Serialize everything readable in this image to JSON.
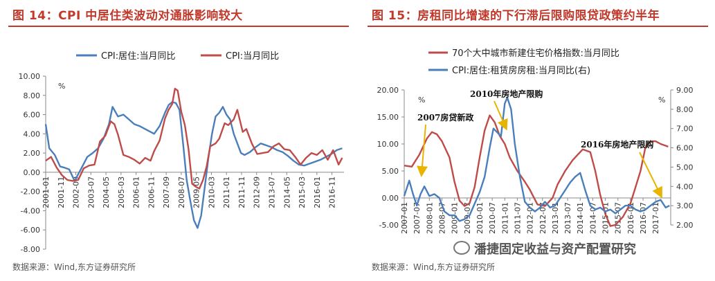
{
  "colors": {
    "title": "#c0392b",
    "blue": "#4a7ebb",
    "red": "#be4b48"
  },
  "left": {
    "title": "图 14：CPI 中居住类波动对通胀影响较大",
    "source": "数据来源：Wind,东方证券研究所"
  },
  "right": {
    "title": "图 15：房租同比增速的下行滞后限购限贷政策约半年",
    "source": "数据来源：Wind,东方证券研究所",
    "watermark": "潘捷固定收益与资产配置研究"
  },
  "chart_data": [
    {
      "type": "line",
      "unit": "%",
      "ylim": [
        -8,
        10
      ],
      "yticks": [
        "10.00",
        "8.00",
        "6.00",
        "4.00",
        "2.00",
        "0.00",
        "-2.00",
        "-4.00",
        "-6.00",
        "-8.00"
      ],
      "xlim": [
        2001.0,
        2017.5
      ],
      "xticks": [
        "2001-01",
        "2001-11",
        "2002-09",
        "2003-07",
        "2004-05",
        "2005-03",
        "2006-01",
        "2006-11",
        "2007-09",
        "2008-07",
        "2009-05",
        "2010-03",
        "2011-01",
        "2011-11",
        "2012-09",
        "2013-07",
        "2014-05",
        "2015-03",
        "2016-01",
        "2016-11"
      ],
      "legend_position": "top",
      "series": [
        {
          "name": "CPI:居住:当月同比",
          "color": "#4a7ebb",
          "x": [
            2001.0,
            2001.2,
            2001.5,
            2001.8,
            2002.0,
            2002.3,
            2002.6,
            2003.0,
            2003.3,
            2003.6,
            2003.9,
            2004.2,
            2004.5,
            2004.7,
            2005.0,
            2005.3,
            2005.6,
            2005.9,
            2006.2,
            2006.5,
            2006.8,
            2007.0,
            2007.3,
            2007.6,
            2007.8,
            2008.0,
            2008.2,
            2008.4,
            2008.6,
            2008.8,
            2009.0,
            2009.2,
            2009.4,
            2009.6,
            2009.8,
            2010.0,
            2010.2,
            2010.4,
            2010.6,
            2010.8,
            2011.0,
            2011.2,
            2011.4,
            2011.6,
            2011.8,
            2012.0,
            2012.3,
            2012.6,
            2012.9,
            2013.2,
            2013.5,
            2013.8,
            2014.1,
            2014.4,
            2014.7,
            2015.0,
            2015.3,
            2015.6,
            2015.9,
            2016.2,
            2016.5,
            2016.8,
            2017.1,
            2017.4
          ],
          "y": [
            5.0,
            2.5,
            1.8,
            0.6,
            0.5,
            0.3,
            -0.9,
            0.5,
            1.6,
            2.0,
            2.5,
            3.5,
            5.0,
            6.8,
            5.8,
            6.0,
            5.5,
            5.0,
            4.8,
            4.5,
            4.2,
            4.0,
            4.8,
            6.2,
            7.0,
            7.3,
            7.2,
            6.5,
            3.0,
            -0.8,
            -3.0,
            -5.0,
            -5.8,
            -4.5,
            -1.5,
            1.5,
            4.0,
            5.8,
            6.2,
            6.8,
            6.0,
            5.5,
            4.0,
            3.0,
            2.0,
            1.8,
            2.1,
            2.6,
            3.0,
            2.8,
            2.6,
            2.3,
            2.1,
            1.7,
            1.2,
            0.8,
            0.7,
            0.9,
            1.1,
            1.3,
            1.6,
            1.9,
            2.3,
            2.5
          ]
        },
        {
          "name": "CPI:当月同比",
          "color": "#be4b48",
          "x": [
            2001.0,
            2001.3,
            2001.6,
            2001.9,
            2002.2,
            2002.5,
            2002.8,
            2003.1,
            2003.4,
            2003.7,
            2004.0,
            2004.3,
            2004.6,
            2004.8,
            2005.0,
            2005.3,
            2005.6,
            2005.9,
            2006.2,
            2006.5,
            2006.8,
            2007.0,
            2007.3,
            2007.6,
            2007.8,
            2008.0,
            2008.15,
            2008.3,
            2008.5,
            2008.7,
            2008.9,
            2009.1,
            2009.3,
            2009.5,
            2009.7,
            2009.9,
            2010.1,
            2010.4,
            2010.6,
            2010.9,
            2011.1,
            2011.4,
            2011.6,
            2011.9,
            2012.1,
            2012.4,
            2012.7,
            2013.0,
            2013.3,
            2013.6,
            2013.9,
            2014.2,
            2014.5,
            2014.8,
            2015.1,
            2015.4,
            2015.7,
            2016.0,
            2016.3,
            2016.6,
            2016.9,
            2017.2,
            2017.4
          ],
          "y": [
            1.2,
            1.6,
            0.5,
            -0.3,
            -0.8,
            -0.9,
            -0.8,
            0.4,
            0.7,
            0.8,
            3.2,
            3.8,
            5.3,
            5.0,
            3.9,
            1.8,
            1.6,
            1.3,
            0.9,
            1.5,
            1.2,
            2.2,
            3.3,
            5.6,
            6.5,
            7.1,
            8.7,
            8.5,
            6.3,
            4.9,
            2.4,
            -1.2,
            -1.5,
            -1.7,
            -0.8,
            0.6,
            2.7,
            3.0,
            3.5,
            5.1,
            4.9,
            5.5,
            6.5,
            4.2,
            4.5,
            3.0,
            1.9,
            2.0,
            2.1,
            2.7,
            3.0,
            2.4,
            2.3,
            1.6,
            0.8,
            1.5,
            2.0,
            1.8,
            2.3,
            1.3,
            2.3,
            0.8,
            1.5
          ]
        }
      ]
    },
    {
      "type": "line",
      "unit_left": "%",
      "unit_right": "%",
      "ylim": [
        -5,
        20
      ],
      "ylim_right": [
        2,
        9
      ],
      "yticks": [
        "20.00",
        "15.00",
        "10.00",
        "5.00",
        "0.00",
        "-5.00"
      ],
      "yticks_right": [
        "9.00",
        "8.00",
        "7.00",
        "6.00",
        "5.00",
        "4.00",
        "3.00",
        "2.00"
      ],
      "xlim": [
        2007.0,
        2017.6
      ],
      "xticks": [
        "2007-01",
        "2007-07",
        "2008-01",
        "2008-07",
        "2009-01",
        "2009-07",
        "2010-01",
        "2010-07",
        "2011-01",
        "2011-07",
        "2012-01",
        "2012-07",
        "2013-01",
        "2013-07",
        "2014-01",
        "2014-07",
        "2015-01",
        "2015-07",
        "2016-01",
        "2016-07",
        "2017-01"
      ],
      "legend_position": "top",
      "annotations": [
        "2007房贷新政",
        "2010年房地产限购",
        "2016年房地产限购"
      ],
      "series": [
        {
          "name": "70个大中城市新建住宅价格指数:当月同比",
          "color": "#be4b48",
          "axis": "left",
          "x": [
            2007.0,
            2007.3,
            2007.6,
            2007.9,
            2008.1,
            2008.3,
            2008.5,
            2008.8,
            2009.0,
            2009.2,
            2009.4,
            2009.6,
            2009.8,
            2010.0,
            2010.2,
            2010.4,
            2010.6,
            2010.8,
            2011.0,
            2011.2,
            2011.5,
            2011.8,
            2012.0,
            2012.3,
            2012.6,
            2012.9,
            2013.1,
            2013.4,
            2013.7,
            2013.9,
            2014.1,
            2014.4,
            2014.6,
            2014.8,
            2015.0,
            2015.2,
            2015.4,
            2015.7,
            2016.0,
            2016.2,
            2016.4,
            2016.6,
            2016.8,
            2017.0,
            2017.2,
            2017.5
          ],
          "y": [
            6.0,
            5.8,
            8.0,
            11.0,
            12.2,
            11.8,
            10.5,
            7.5,
            3.0,
            -0.5,
            -1.5,
            -1.0,
            2.0,
            7.5,
            12.5,
            15.3,
            14.0,
            11.5,
            10.0,
            7.5,
            5.0,
            3.0,
            1.5,
            -1.2,
            -1.5,
            0.0,
            2.5,
            5.0,
            7.0,
            8.0,
            9.0,
            8.5,
            5.0,
            0.5,
            -3.0,
            -5.2,
            -5.0,
            -3.5,
            -1.0,
            2.0,
            5.0,
            9.5,
            10.5,
            10.5,
            10.0,
            9.5
          ]
        },
        {
          "name": "CPI:居住:租赁房房租:当月同比(右)",
          "color": "#4a7ebb",
          "axis": "right",
          "x": [
            2007.0,
            2007.2,
            2007.35,
            2007.5,
            2007.65,
            2007.8,
            2008.0,
            2008.2,
            2008.4,
            2008.6,
            2008.8,
            2009.0,
            2009.2,
            2009.4,
            2009.6,
            2009.8,
            2010.0,
            2010.2,
            2010.4,
            2010.55,
            2010.7,
            2010.85,
            2011.0,
            2011.1,
            2011.25,
            2011.4,
            2011.6,
            2011.8,
            2012.0,
            2012.2,
            2012.4,
            2012.6,
            2012.8,
            2013.0,
            2013.2,
            2013.4,
            2013.6,
            2013.8,
            2014.0,
            2014.2,
            2014.4,
            2014.6,
            2014.8,
            2015.0,
            2015.2,
            2015.4,
            2015.6,
            2015.8,
            2016.0,
            2016.2,
            2016.4,
            2016.6,
            2016.8,
            2017.0,
            2017.2,
            2017.4,
            2017.55
          ],
          "y": [
            3.5,
            4.3,
            3.6,
            3.0,
            3.6,
            4.0,
            3.5,
            3.6,
            3.4,
            2.7,
            2.5,
            2.5,
            2.2,
            2.3,
            2.5,
            3.1,
            3.7,
            4.5,
            6.0,
            7.0,
            6.8,
            6.6,
            8.3,
            8.6,
            8.0,
            6.2,
            4.5,
            3.2,
            2.9,
            2.7,
            2.9,
            3.2,
            2.9,
            3.0,
            3.4,
            3.8,
            4.2,
            4.5,
            4.7,
            3.8,
            3.0,
            2.8,
            2.9,
            2.7,
            2.8,
            2.6,
            2.8,
            3.0,
            3.0,
            2.8,
            2.7,
            2.8,
            3.0,
            3.2,
            3.3,
            2.9,
            3.0
          ]
        }
      ]
    }
  ]
}
